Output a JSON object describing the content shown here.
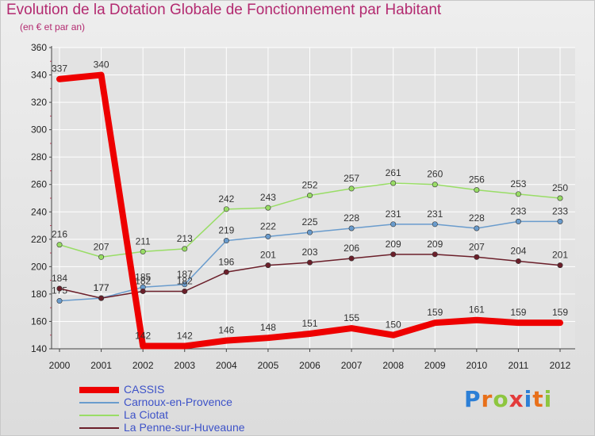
{
  "colors": {
    "title": "#b32a70",
    "legend_text": "#3d52c8",
    "axis": "#444444",
    "grid": "#ffffff",
    "background": "#e5e5e5"
  },
  "logo": {
    "text": "Proxiti",
    "icon": "proxiti-logo"
  },
  "chart_data": {
    "type": "line",
    "title": "Evolution de la Dotation Globale de Fonctionnement par Habitant",
    "subtitle": "(en € et par an)",
    "x": [
      "2000",
      "2001",
      "2002",
      "2003",
      "2004",
      "2005",
      "2006",
      "2007",
      "2008",
      "2009",
      "2010",
      "2011",
      "2012"
    ],
    "ylim": [
      140,
      360
    ],
    "yticks": [
      140,
      160,
      180,
      200,
      220,
      240,
      260,
      280,
      300,
      320,
      340,
      360
    ],
    "grid": true,
    "legend_position": "bottom-left",
    "series": [
      {
        "name": "CASSIS",
        "color": "#ee0000",
        "width": 8,
        "values": [
          337,
          340,
          142,
          142,
          146,
          148,
          151,
          155,
          150,
          159,
          161,
          159,
          159
        ]
      },
      {
        "name": "Carnoux-en-Provence",
        "color": "#6a9ccd",
        "width": 1.5,
        "values": [
          175,
          177,
          185,
          187,
          219,
          222,
          225,
          228,
          231,
          231,
          228,
          233,
          233
        ]
      },
      {
        "name": "La Ciotat",
        "color": "#99dd66",
        "width": 1.5,
        "values": [
          216,
          207,
          211,
          213,
          242,
          243,
          252,
          257,
          261,
          260,
          256,
          253,
          250
        ]
      },
      {
        "name": "La Penne-sur-Huveaune",
        "color": "#6b1f2a",
        "width": 1.5,
        "values": [
          184,
          177,
          182,
          182,
          196,
          201,
          203,
          206,
          209,
          209,
          207,
          204,
          201
        ]
      }
    ]
  }
}
